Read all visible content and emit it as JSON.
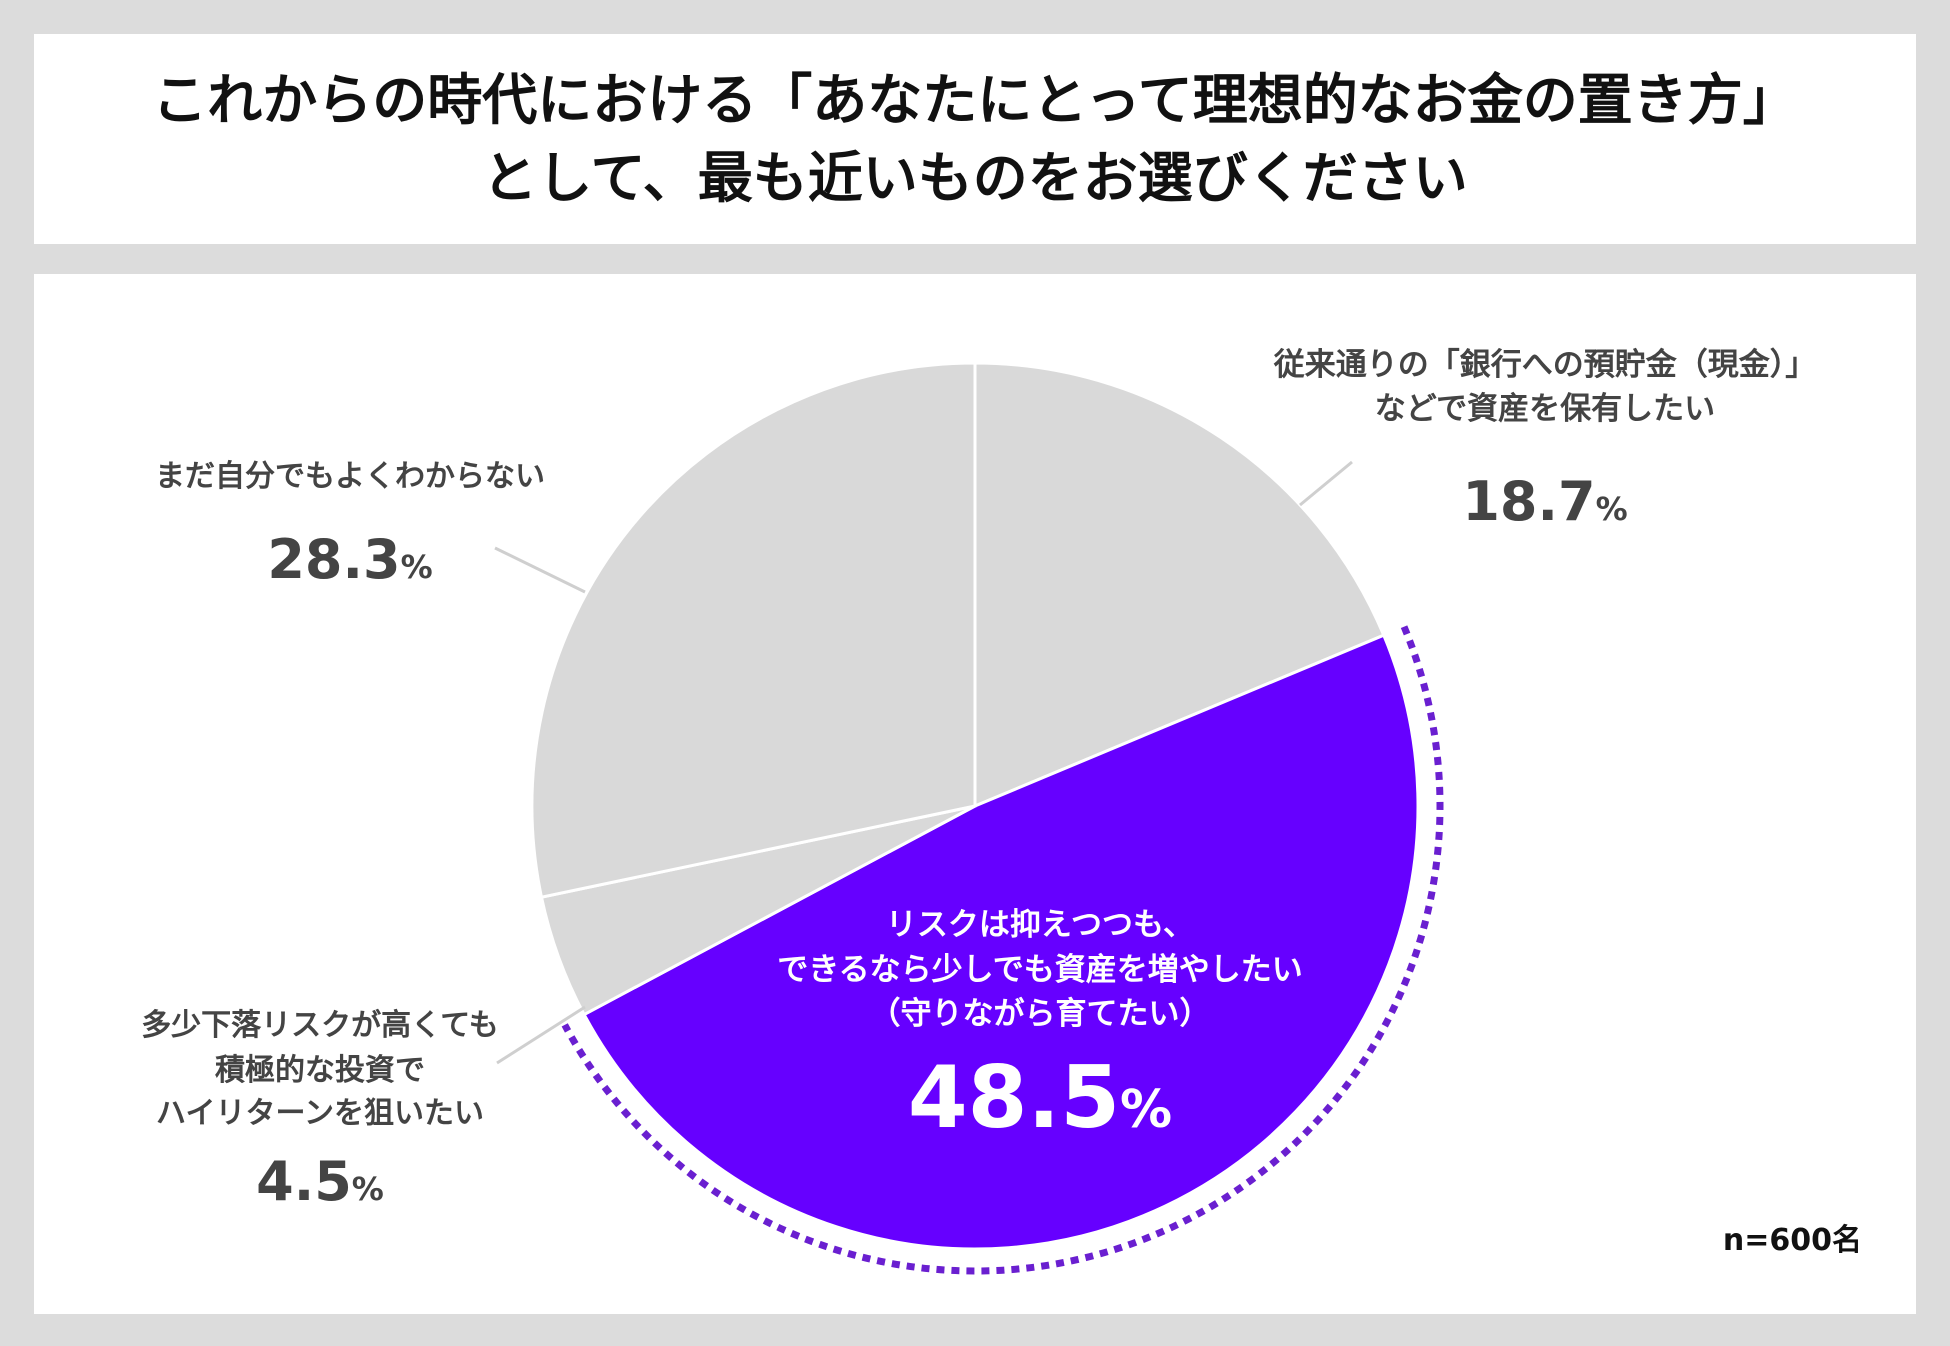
{
  "title": {
    "line1": "これからの時代における「あなたにとって理想的なお金の置き方」",
    "line2": "として、最も近いものをお選びください"
  },
  "sample_note": "n=600名",
  "colors": {
    "highlight": "#6600ff",
    "other": "#d9d9d9",
    "label_text": "#444444",
    "highlight_text": "#ffffff",
    "dotted_border": "#6a1fd0"
  },
  "chart_data": {
    "type": "pie",
    "unit": "%",
    "slices": [
      {
        "label_lines": [
          "従来通りの「銀行への預貯金（現金）」",
          "などで資産を保有したい"
        ],
        "value": 18.7,
        "value_text": "18.7",
        "highlight": false
      },
      {
        "label_lines": [
          "リスクは抑えつつも、",
          "できるなら少しでも資産を増やしたい",
          "（守りながら育てたい）"
        ],
        "value": 48.5,
        "value_text": "48.5",
        "highlight": true
      },
      {
        "label_lines": [
          "多少下落リスクが高くても",
          "積極的な投資で",
          "ハイリターンを狙いたい"
        ],
        "value": 4.5,
        "value_text": "4.5",
        "highlight": false
      },
      {
        "label_lines": [
          "まだ自分でもよくわからない"
        ],
        "value": 28.3,
        "value_text": "28.3",
        "highlight": false
      }
    ]
  }
}
